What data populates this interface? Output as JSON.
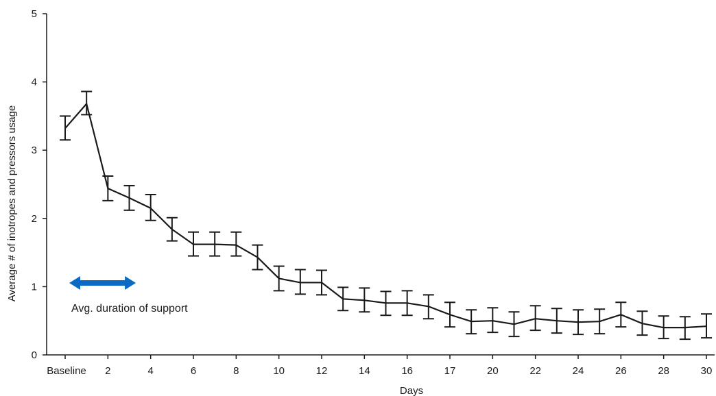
{
  "chart_data": {
    "type": "line",
    "title": "",
    "xlabel": "Days",
    "ylabel": "Average # of inotropes and pressors usage",
    "ylim": [
      0,
      5
    ],
    "yticks": [
      0,
      1,
      2,
      3,
      4,
      5
    ],
    "x_tick_labels": [
      "Baseline",
      "2",
      "4",
      "6",
      "8",
      "10",
      "12",
      "14",
      "16",
      "17",
      "20",
      "22",
      "24",
      "26",
      "28",
      "30"
    ],
    "line_color": "#1a1a1a",
    "arrow_color": "#0a6ac4",
    "grid": false,
    "annotation": {
      "text": "Avg. duration of support",
      "arrow_from_index": 0,
      "arrow_to_index": 3.5
    },
    "series": [
      {
        "mean": [
          3.32,
          3.68,
          2.44,
          2.3,
          2.15,
          1.84,
          1.62,
          1.62,
          1.61,
          1.43,
          1.12,
          1.06,
          1.06,
          0.82,
          0.8,
          0.76,
          0.76,
          0.71,
          0.59,
          0.49,
          0.5,
          0.45,
          0.53,
          0.5,
          0.48,
          0.49,
          0.59,
          0.46,
          0.4,
          0.4,
          0.42
        ],
        "upper": [
          3.5,
          3.86,
          2.62,
          2.48,
          2.35,
          2.01,
          1.8,
          1.8,
          1.8,
          1.61,
          1.3,
          1.25,
          1.24,
          0.99,
          0.98,
          0.93,
          0.94,
          0.88,
          0.77,
          0.66,
          0.69,
          0.63,
          0.72,
          0.68,
          0.66,
          0.67,
          0.77,
          0.64,
          0.57,
          0.56,
          0.6
        ],
        "lower": [
          3.15,
          3.52,
          2.26,
          2.12,
          1.97,
          1.67,
          1.45,
          1.45,
          1.45,
          1.25,
          0.94,
          0.89,
          0.88,
          0.65,
          0.63,
          0.58,
          0.58,
          0.53,
          0.41,
          0.31,
          0.33,
          0.27,
          0.36,
          0.32,
          0.3,
          0.31,
          0.41,
          0.29,
          0.24,
          0.23,
          0.25
        ]
      }
    ]
  }
}
